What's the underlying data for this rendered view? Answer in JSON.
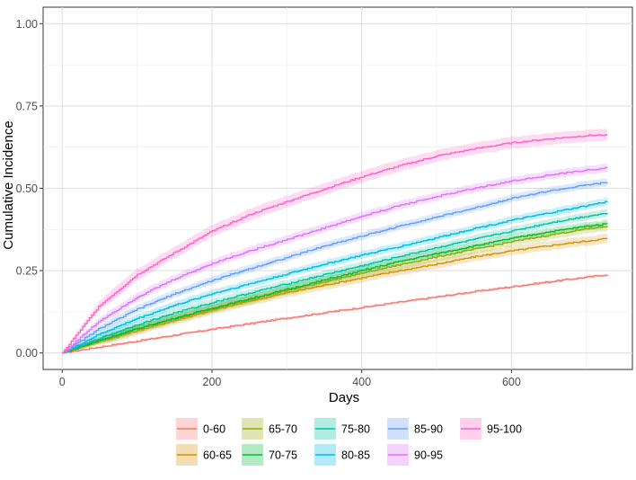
{
  "chart_data": {
    "type": "line",
    "title": "",
    "xlabel": "Days",
    "ylabel": "Cumulative Incidence",
    "xlim": [
      0,
      730
    ],
    "ylim": [
      0,
      1.0
    ],
    "x_ticks": [
      0,
      200,
      400,
      600
    ],
    "y_ticks": [
      0.0,
      0.25,
      0.5,
      0.75,
      1.0
    ],
    "x_tick_labels": [
      "0",
      "200",
      "400",
      "600"
    ],
    "y_tick_labels": [
      "0.00",
      "0.25",
      "0.50",
      "0.75",
      "1.00"
    ],
    "grid": true,
    "legend_position": "bottom",
    "x": [
      0,
      50,
      100,
      150,
      200,
      250,
      300,
      350,
      400,
      450,
      500,
      550,
      600,
      650,
      700,
      728
    ],
    "series": [
      {
        "name": "0-60",
        "color": "#F8766D",
        "values": [
          0,
          0.018,
          0.036,
          0.054,
          0.072,
          0.089,
          0.106,
          0.122,
          0.138,
          0.154,
          0.17,
          0.186,
          0.201,
          0.216,
          0.23,
          0.238
        ],
        "band": 0.004
      },
      {
        "name": "60-65",
        "color": "#D39200",
        "values": [
          0,
          0.035,
          0.068,
          0.1,
          0.13,
          0.158,
          0.183,
          0.206,
          0.228,
          0.25,
          0.27,
          0.292,
          0.31,
          0.326,
          0.34,
          0.348
        ],
        "band": 0.014
      },
      {
        "name": "65-70",
        "color": "#93AA00",
        "values": [
          0,
          0.038,
          0.073,
          0.105,
          0.135,
          0.163,
          0.19,
          0.217,
          0.243,
          0.268,
          0.292,
          0.315,
          0.338,
          0.358,
          0.377,
          0.385
        ],
        "band": 0.014
      },
      {
        "name": "70-75",
        "color": "#00BA38",
        "values": [
          0,
          0.039,
          0.074,
          0.106,
          0.136,
          0.165,
          0.193,
          0.222,
          0.25,
          0.278,
          0.302,
          0.325,
          0.348,
          0.368,
          0.385,
          0.392
        ],
        "band": 0.012
      },
      {
        "name": "75-80",
        "color": "#00C19F",
        "values": [
          0,
          0.045,
          0.086,
          0.122,
          0.153,
          0.182,
          0.21,
          0.238,
          0.265,
          0.293,
          0.32,
          0.345,
          0.37,
          0.395,
          0.415,
          0.425
        ],
        "band": 0.012
      },
      {
        "name": "80-85",
        "color": "#00B9E3",
        "values": [
          0,
          0.058,
          0.105,
          0.145,
          0.18,
          0.21,
          0.24,
          0.27,
          0.297,
          0.323,
          0.35,
          0.378,
          0.403,
          0.425,
          0.447,
          0.46
        ],
        "band": 0.012
      },
      {
        "name": "85-90",
        "color": "#619CFF",
        "values": [
          0,
          0.075,
          0.133,
          0.18,
          0.22,
          0.256,
          0.29,
          0.325,
          0.355,
          0.385,
          0.413,
          0.44,
          0.47,
          0.492,
          0.51,
          0.518
        ],
        "band": 0.012
      },
      {
        "name": "90-95",
        "color": "#DB72FB",
        "values": [
          0,
          0.098,
          0.17,
          0.225,
          0.272,
          0.31,
          0.345,
          0.38,
          0.415,
          0.448,
          0.475,
          0.5,
          0.522,
          0.54,
          0.555,
          0.562
        ],
        "band": 0.013
      },
      {
        "name": "95-100",
        "color": "#FF61C3",
        "values": [
          0,
          0.145,
          0.238,
          0.305,
          0.37,
          0.42,
          0.46,
          0.498,
          0.535,
          0.568,
          0.598,
          0.62,
          0.638,
          0.65,
          0.66,
          0.663
        ],
        "band": 0.018
      }
    ]
  }
}
